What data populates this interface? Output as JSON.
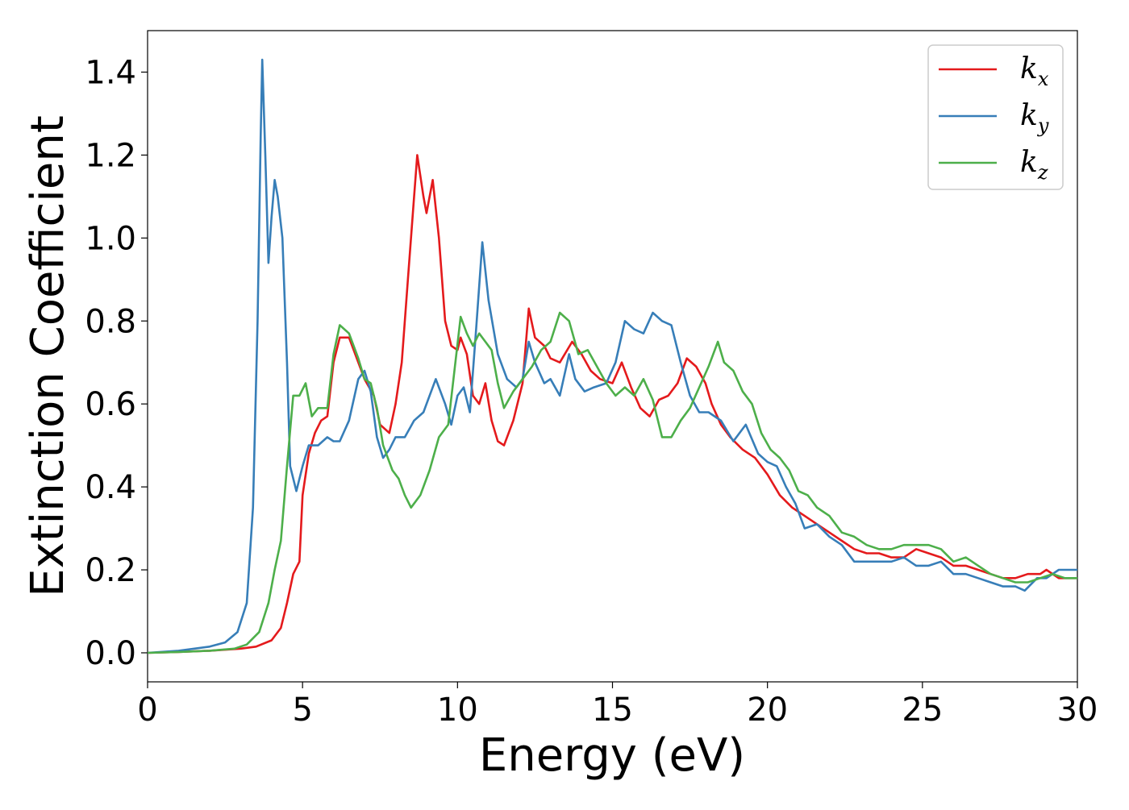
{
  "chart_data": {
    "type": "line",
    "title": "",
    "xlabel": "Energy (eV)",
    "ylabel": "Extinction Coefficient",
    "xlim": [
      0,
      30
    ],
    "ylim": [
      -0.07,
      1.5
    ],
    "x_ticks": [
      0,
      5,
      10,
      15,
      20,
      25,
      30
    ],
    "x_tick_labels": [
      "0",
      "5",
      "10",
      "15",
      "20",
      "25",
      "30"
    ],
    "y_ticks": [
      0.0,
      0.2,
      0.4,
      0.6,
      0.8,
      1.0,
      1.2,
      1.4
    ],
    "y_tick_labels": [
      "0.0",
      "0.2",
      "0.4",
      "0.6",
      "0.8",
      "1.0",
      "1.2",
      "1.4"
    ],
    "grid": false,
    "legend_position": "top-right",
    "series": [
      {
        "name": "k",
        "subscript": "x",
        "color": "#e41a1c",
        "points": [
          [
            0,
            0
          ],
          [
            1,
            0.002
          ],
          [
            2,
            0.005
          ],
          [
            3,
            0.01
          ],
          [
            3.5,
            0.015
          ],
          [
            4,
            0.03
          ],
          [
            4.3,
            0.06
          ],
          [
            4.5,
            0.12
          ],
          [
            4.7,
            0.19
          ],
          [
            4.9,
            0.22
          ],
          [
            5.0,
            0.38
          ],
          [
            5.2,
            0.48
          ],
          [
            5.4,
            0.53
          ],
          [
            5.6,
            0.56
          ],
          [
            5.8,
            0.57
          ],
          [
            6.0,
            0.7
          ],
          [
            6.2,
            0.76
          ],
          [
            6.5,
            0.76
          ],
          [
            6.8,
            0.7
          ],
          [
            7.0,
            0.66
          ],
          [
            7.3,
            0.62
          ],
          [
            7.5,
            0.55
          ],
          [
            7.8,
            0.53
          ],
          [
            8.0,
            0.6
          ],
          [
            8.2,
            0.7
          ],
          [
            8.4,
            0.9
          ],
          [
            8.6,
            1.1
          ],
          [
            8.7,
            1.2
          ],
          [
            8.9,
            1.1
          ],
          [
            9.0,
            1.06
          ],
          [
            9.2,
            1.14
          ],
          [
            9.4,
            1.0
          ],
          [
            9.6,
            0.8
          ],
          [
            9.8,
            0.74
          ],
          [
            10.0,
            0.73
          ],
          [
            10.1,
            0.76
          ],
          [
            10.3,
            0.72
          ],
          [
            10.5,
            0.62
          ],
          [
            10.7,
            0.6
          ],
          [
            10.9,
            0.65
          ],
          [
            11.1,
            0.56
          ],
          [
            11.3,
            0.51
          ],
          [
            11.5,
            0.5
          ],
          [
            11.8,
            0.56
          ],
          [
            12.1,
            0.65
          ],
          [
            12.3,
            0.83
          ],
          [
            12.5,
            0.76
          ],
          [
            12.8,
            0.74
          ],
          [
            13.0,
            0.71
          ],
          [
            13.3,
            0.7
          ],
          [
            13.7,
            0.75
          ],
          [
            14.0,
            0.72
          ],
          [
            14.3,
            0.68
          ],
          [
            14.6,
            0.66
          ],
          [
            15.0,
            0.65
          ],
          [
            15.3,
            0.7
          ],
          [
            15.6,
            0.64
          ],
          [
            15.9,
            0.59
          ],
          [
            16.2,
            0.57
          ],
          [
            16.5,
            0.61
          ],
          [
            16.8,
            0.62
          ],
          [
            17.1,
            0.65
          ],
          [
            17.4,
            0.71
          ],
          [
            17.7,
            0.69
          ],
          [
            18.0,
            0.65
          ],
          [
            18.2,
            0.6
          ],
          [
            18.5,
            0.55
          ],
          [
            18.8,
            0.52
          ],
          [
            19.2,
            0.49
          ],
          [
            19.6,
            0.47
          ],
          [
            20.0,
            0.43
          ],
          [
            20.4,
            0.38
          ],
          [
            20.8,
            0.35
          ],
          [
            21.2,
            0.33
          ],
          [
            21.6,
            0.31
          ],
          [
            22.0,
            0.29
          ],
          [
            22.4,
            0.27
          ],
          [
            22.8,
            0.25
          ],
          [
            23.2,
            0.24
          ],
          [
            23.6,
            0.24
          ],
          [
            24.0,
            0.23
          ],
          [
            24.4,
            0.23
          ],
          [
            24.8,
            0.25
          ],
          [
            25.2,
            0.24
          ],
          [
            25.6,
            0.23
          ],
          [
            26.0,
            0.21
          ],
          [
            26.4,
            0.21
          ],
          [
            26.8,
            0.2
          ],
          [
            27.2,
            0.19
          ],
          [
            27.6,
            0.18
          ],
          [
            28.0,
            0.18
          ],
          [
            28.4,
            0.19
          ],
          [
            28.8,
            0.19
          ],
          [
            29.0,
            0.2
          ],
          [
            29.4,
            0.18
          ],
          [
            29.7,
            0.18
          ],
          [
            30,
            0.18
          ]
        ]
      },
      {
        "name": "k",
        "subscript": "y",
        "color": "#377eb8",
        "points": [
          [
            0,
            0
          ],
          [
            1,
            0.005
          ],
          [
            2,
            0.015
          ],
          [
            2.5,
            0.025
          ],
          [
            2.9,
            0.05
          ],
          [
            3.2,
            0.12
          ],
          [
            3.4,
            0.35
          ],
          [
            3.55,
            0.8
          ],
          [
            3.65,
            1.25
          ],
          [
            3.7,
            1.43
          ],
          [
            3.8,
            1.2
          ],
          [
            3.9,
            0.94
          ],
          [
            4.0,
            1.05
          ],
          [
            4.1,
            1.14
          ],
          [
            4.2,
            1.1
          ],
          [
            4.35,
            1.0
          ],
          [
            4.5,
            0.7
          ],
          [
            4.6,
            0.45
          ],
          [
            4.8,
            0.39
          ],
          [
            5.0,
            0.45
          ],
          [
            5.2,
            0.5
          ],
          [
            5.5,
            0.5
          ],
          [
            5.8,
            0.52
          ],
          [
            6.0,
            0.51
          ],
          [
            6.2,
            0.51
          ],
          [
            6.5,
            0.56
          ],
          [
            6.8,
            0.66
          ],
          [
            7.0,
            0.68
          ],
          [
            7.2,
            0.63
          ],
          [
            7.4,
            0.52
          ],
          [
            7.6,
            0.47
          ],
          [
            7.8,
            0.49
          ],
          [
            8.0,
            0.52
          ],
          [
            8.3,
            0.52
          ],
          [
            8.6,
            0.56
          ],
          [
            8.9,
            0.58
          ],
          [
            9.1,
            0.62
          ],
          [
            9.3,
            0.66
          ],
          [
            9.6,
            0.6
          ],
          [
            9.8,
            0.55
          ],
          [
            10.0,
            0.62
          ],
          [
            10.2,
            0.64
          ],
          [
            10.4,
            0.58
          ],
          [
            10.6,
            0.78
          ],
          [
            10.8,
            0.99
          ],
          [
            11.0,
            0.85
          ],
          [
            11.3,
            0.72
          ],
          [
            11.6,
            0.66
          ],
          [
            11.9,
            0.64
          ],
          [
            12.1,
            0.66
          ],
          [
            12.3,
            0.75
          ],
          [
            12.5,
            0.7
          ],
          [
            12.8,
            0.65
          ],
          [
            13.0,
            0.66
          ],
          [
            13.3,
            0.62
          ],
          [
            13.6,
            0.72
          ],
          [
            13.8,
            0.66
          ],
          [
            14.1,
            0.63
          ],
          [
            14.4,
            0.64
          ],
          [
            14.8,
            0.65
          ],
          [
            15.1,
            0.7
          ],
          [
            15.4,
            0.8
          ],
          [
            15.7,
            0.78
          ],
          [
            16.0,
            0.77
          ],
          [
            16.3,
            0.82
          ],
          [
            16.6,
            0.8
          ],
          [
            16.9,
            0.79
          ],
          [
            17.2,
            0.7
          ],
          [
            17.5,
            0.62
          ],
          [
            17.8,
            0.58
          ],
          [
            18.1,
            0.58
          ],
          [
            18.5,
            0.56
          ],
          [
            18.9,
            0.51
          ],
          [
            19.3,
            0.55
          ],
          [
            19.7,
            0.48
          ],
          [
            20.0,
            0.46
          ],
          [
            20.3,
            0.45
          ],
          [
            20.6,
            0.4
          ],
          [
            20.9,
            0.36
          ],
          [
            21.2,
            0.3
          ],
          [
            21.6,
            0.31
          ],
          [
            22.0,
            0.28
          ],
          [
            22.4,
            0.26
          ],
          [
            22.8,
            0.22
          ],
          [
            23.2,
            0.22
          ],
          [
            23.6,
            0.22
          ],
          [
            24.0,
            0.22
          ],
          [
            24.4,
            0.23
          ],
          [
            24.8,
            0.21
          ],
          [
            25.2,
            0.21
          ],
          [
            25.6,
            0.22
          ],
          [
            26.0,
            0.19
          ],
          [
            26.4,
            0.19
          ],
          [
            26.8,
            0.18
          ],
          [
            27.2,
            0.17
          ],
          [
            27.6,
            0.16
          ],
          [
            28.0,
            0.16
          ],
          [
            28.3,
            0.15
          ],
          [
            28.7,
            0.18
          ],
          [
            29.0,
            0.18
          ],
          [
            29.4,
            0.2
          ],
          [
            29.7,
            0.2
          ],
          [
            30,
            0.2
          ]
        ]
      },
      {
        "name": "k",
        "subscript": "z",
        "color": "#4daf4a",
        "points": [
          [
            0,
            0
          ],
          [
            1,
            0.002
          ],
          [
            2,
            0.005
          ],
          [
            2.8,
            0.01
          ],
          [
            3.2,
            0.02
          ],
          [
            3.6,
            0.05
          ],
          [
            3.9,
            0.12
          ],
          [
            4.1,
            0.2
          ],
          [
            4.3,
            0.27
          ],
          [
            4.5,
            0.45
          ],
          [
            4.7,
            0.62
          ],
          [
            4.9,
            0.62
          ],
          [
            5.1,
            0.65
          ],
          [
            5.3,
            0.57
          ],
          [
            5.5,
            0.59
          ],
          [
            5.8,
            0.59
          ],
          [
            6.0,
            0.72
          ],
          [
            6.2,
            0.79
          ],
          [
            6.5,
            0.77
          ],
          [
            6.8,
            0.71
          ],
          [
            7.0,
            0.66
          ],
          [
            7.2,
            0.65
          ],
          [
            7.4,
            0.59
          ],
          [
            7.6,
            0.5
          ],
          [
            7.9,
            0.44
          ],
          [
            8.1,
            0.42
          ],
          [
            8.3,
            0.38
          ],
          [
            8.5,
            0.35
          ],
          [
            8.8,
            0.38
          ],
          [
            9.1,
            0.44
          ],
          [
            9.4,
            0.52
          ],
          [
            9.7,
            0.55
          ],
          [
            9.9,
            0.68
          ],
          [
            10.1,
            0.81
          ],
          [
            10.3,
            0.77
          ],
          [
            10.5,
            0.74
          ],
          [
            10.7,
            0.77
          ],
          [
            10.9,
            0.75
          ],
          [
            11.1,
            0.73
          ],
          [
            11.3,
            0.65
          ],
          [
            11.5,
            0.59
          ],
          [
            11.8,
            0.63
          ],
          [
            12.1,
            0.66
          ],
          [
            12.4,
            0.69
          ],
          [
            12.7,
            0.73
          ],
          [
            13.0,
            0.75
          ],
          [
            13.3,
            0.82
          ],
          [
            13.6,
            0.8
          ],
          [
            13.9,
            0.72
          ],
          [
            14.2,
            0.73
          ],
          [
            14.5,
            0.69
          ],
          [
            14.8,
            0.65
          ],
          [
            15.1,
            0.62
          ],
          [
            15.4,
            0.64
          ],
          [
            15.7,
            0.62
          ],
          [
            16.0,
            0.66
          ],
          [
            16.3,
            0.61
          ],
          [
            16.6,
            0.52
          ],
          [
            16.9,
            0.52
          ],
          [
            17.2,
            0.56
          ],
          [
            17.5,
            0.59
          ],
          [
            17.8,
            0.64
          ],
          [
            18.1,
            0.69
          ],
          [
            18.4,
            0.75
          ],
          [
            18.6,
            0.7
          ],
          [
            18.9,
            0.68
          ],
          [
            19.2,
            0.63
          ],
          [
            19.5,
            0.6
          ],
          [
            19.8,
            0.53
          ],
          [
            20.1,
            0.49
          ],
          [
            20.4,
            0.47
          ],
          [
            20.7,
            0.44
          ],
          [
            21.0,
            0.39
          ],
          [
            21.3,
            0.38
          ],
          [
            21.6,
            0.35
          ],
          [
            22.0,
            0.33
          ],
          [
            22.4,
            0.29
          ],
          [
            22.8,
            0.28
          ],
          [
            23.2,
            0.26
          ],
          [
            23.6,
            0.25
          ],
          [
            24.0,
            0.25
          ],
          [
            24.4,
            0.26
          ],
          [
            24.8,
            0.26
          ],
          [
            25.2,
            0.26
          ],
          [
            25.6,
            0.25
          ],
          [
            26.0,
            0.22
          ],
          [
            26.4,
            0.23
          ],
          [
            26.8,
            0.21
          ],
          [
            27.2,
            0.19
          ],
          [
            27.6,
            0.18
          ],
          [
            28.0,
            0.17
          ],
          [
            28.4,
            0.17
          ],
          [
            28.8,
            0.18
          ],
          [
            29.2,
            0.19
          ],
          [
            29.6,
            0.18
          ],
          [
            30,
            0.18
          ]
        ]
      }
    ]
  }
}
